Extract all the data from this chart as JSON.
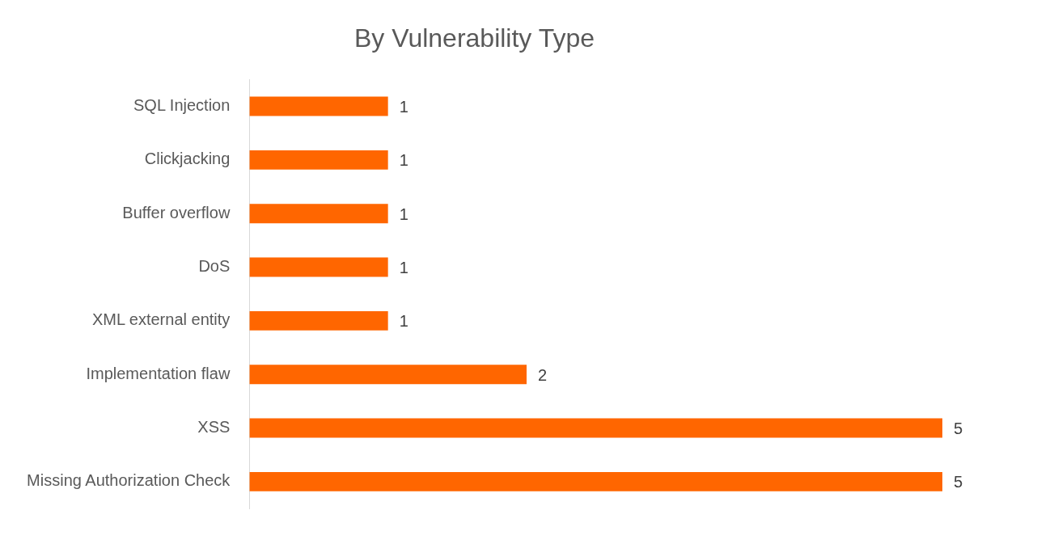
{
  "chart_data": {
    "type": "bar",
    "orientation": "horizontal",
    "title": "By Vulnerability Type",
    "categories": [
      "SQL Injection",
      "Clickjacking",
      "Buffer overflow",
      "DoS",
      "XML external entity",
      "Implementation flaw",
      "XSS",
      "Missing Authorization Check"
    ],
    "values": [
      1,
      1,
      1,
      1,
      1,
      2,
      5,
      5
    ],
    "color": "#ff6600",
    "data_labels": true,
    "legend": false
  }
}
